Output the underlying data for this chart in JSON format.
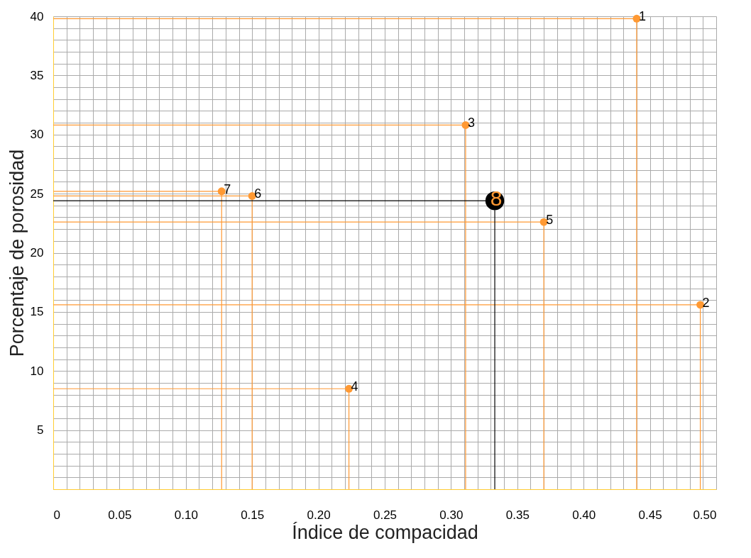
{
  "chart_data": {
    "type": "scatter",
    "xlabel": "Índice de compacidad",
    "ylabel": "Porcentaje de porosidad",
    "series": [
      {
        "color": "#ff9933",
        "x": [
          0.44,
          0.488,
          0.311,
          0.223,
          0.37,
          0.15,
          0.127
        ],
        "values": [
          39.8,
          15.6,
          30.8,
          8.5,
          22.6,
          24.8,
          25.2
        ]
      },
      {
        "color": "#000000",
        "x": [
          0.333
        ],
        "values": [
          24.4
        ]
      }
    ],
    "annotations": [
      {
        "text": "1",
        "x": 0.44,
        "y": 39.8
      },
      {
        "text": "2",
        "x": 0.488,
        "y": 15.6
      },
      {
        "text": "3",
        "x": 0.311,
        "y": 30.8
      },
      {
        "text": "4",
        "x": 0.223,
        "y": 8.5
      },
      {
        "text": "5",
        "x": 0.37,
        "y": 22.6
      },
      {
        "text": "6",
        "x": 0.15,
        "y": 24.8
      },
      {
        "text": "7",
        "x": 0.127,
        "y": 25.2
      },
      {
        "text": "8",
        "x": 0.333,
        "y": 24.4
      }
    ],
    "xlim": [
      0,
      0.5
    ],
    "ylim": [
      0,
      40
    ],
    "xticks": [
      {
        "value": 0,
        "label": "0"
      },
      {
        "value": 0.01,
        "label": null
      },
      {
        "value": 0.02,
        "label": null
      },
      {
        "value": 0.03,
        "label": null
      },
      {
        "value": 0.04,
        "label": null
      },
      {
        "value": 0.05,
        "label": "0.05"
      },
      {
        "value": 0.06,
        "label": null
      },
      {
        "value": 0.07,
        "label": null
      },
      {
        "value": 0.08,
        "label": null
      },
      {
        "value": 0.09,
        "label": null
      },
      {
        "value": 0.1,
        "label": "0.10"
      },
      {
        "value": 0.11,
        "label": null
      },
      {
        "value": 0.12,
        "label": null
      },
      {
        "value": 0.13,
        "label": null
      },
      {
        "value": 0.14,
        "label": null
      },
      {
        "value": 0.15,
        "label": "0.15"
      },
      {
        "value": 0.16,
        "label": null
      },
      {
        "value": 0.17,
        "label": null
      },
      {
        "value": 0.18,
        "label": null
      },
      {
        "value": 0.19,
        "label": null
      },
      {
        "value": 0.2,
        "label": "0.20"
      },
      {
        "value": 0.21,
        "label": null
      },
      {
        "value": 0.22,
        "label": null
      },
      {
        "value": 0.23,
        "label": null
      },
      {
        "value": 0.24,
        "label": null
      },
      {
        "value": 0.25,
        "label": "0.25"
      },
      {
        "value": 0.26,
        "label": null
      },
      {
        "value": 0.27,
        "label": null
      },
      {
        "value": 0.28,
        "label": null
      },
      {
        "value": 0.29,
        "label": null
      },
      {
        "value": 0.3,
        "label": "0.30"
      },
      {
        "value": 0.31,
        "label": null
      },
      {
        "value": 0.32,
        "label": null
      },
      {
        "value": 0.33,
        "label": null
      },
      {
        "value": 0.34,
        "label": null
      },
      {
        "value": 0.35,
        "label": "0.35"
      },
      {
        "value": 0.36,
        "label": null
      },
      {
        "value": 0.37,
        "label": null
      },
      {
        "value": 0.38,
        "label": null
      },
      {
        "value": 0.39,
        "label": null
      },
      {
        "value": 0.4,
        "label": "0.40"
      },
      {
        "value": 0.41,
        "label": null
      },
      {
        "value": 0.42,
        "label": null
      },
      {
        "value": 0.43,
        "label": null
      },
      {
        "value": 0.44,
        "label": null
      },
      {
        "value": 0.45,
        "label": "0.45"
      },
      {
        "value": 0.46,
        "label": null
      },
      {
        "value": 0.47,
        "label": null
      },
      {
        "value": 0.48,
        "label": null
      },
      {
        "value": 0.49,
        "label": null
      },
      {
        "value": 0.5,
        "label": "0.50"
      }
    ],
    "yticks": [
      {
        "value": 0,
        "label": null
      },
      {
        "value": 1,
        "label": null
      },
      {
        "value": 2,
        "label": null
      },
      {
        "value": 3,
        "label": null
      },
      {
        "value": 4,
        "label": null
      },
      5,
      {
        "value": 6,
        "label": null
      },
      {
        "value": 7,
        "label": null
      },
      {
        "value": 8,
        "label": null
      },
      {
        "value": 9,
        "label": null
      },
      10,
      {
        "value": 11,
        "label": null
      },
      {
        "value": 12,
        "label": null
      },
      {
        "value": 13,
        "label": null
      },
      {
        "value": 14,
        "label": null
      },
      15,
      {
        "value": 16,
        "label": null
      },
      {
        "value": 17,
        "label": null
      },
      {
        "value": 18,
        "label": null
      },
      {
        "value": 19,
        "label": null
      },
      20,
      {
        "value": 21,
        "label": null
      },
      {
        "value": 22,
        "label": null
      },
      {
        "value": 23,
        "label": null
      },
      {
        "value": 24,
        "label": null
      },
      25,
      {
        "value": 26,
        "label": null
      },
      {
        "value": 27,
        "label": null
      },
      {
        "value": 28,
        "label": null
      },
      {
        "value": 29,
        "label": null
      },
      30,
      {
        "value": 31,
        "label": null
      },
      {
        "value": 32,
        "label": null
      },
      {
        "value": 33,
        "label": null
      },
      {
        "value": 34,
        "label": null
      },
      35,
      {
        "value": 36,
        "label": null
      },
      {
        "value": 37,
        "label": null
      },
      {
        "value": 38,
        "label": null
      },
      {
        "value": 39,
        "label": null
      },
      40
    ],
    "grid": true,
    "marker": "circle"
  }
}
